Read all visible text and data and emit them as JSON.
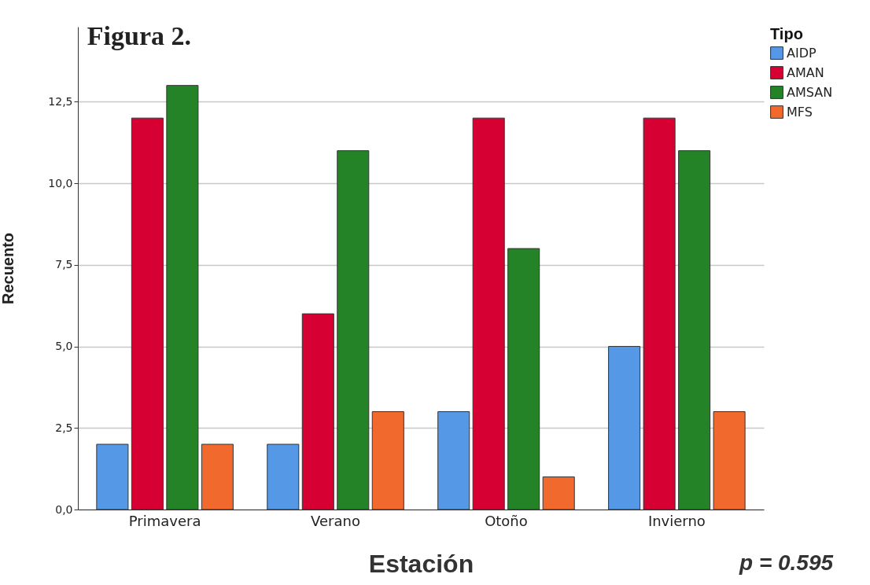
{
  "chart_data": {
    "type": "bar",
    "title": "Figura 2.",
    "xlabel": "Estación",
    "ylabel": "Recuento",
    "legend_title": "Tipo",
    "categories": [
      "Primavera",
      "Verano",
      "Otoño",
      "Invierno"
    ],
    "series": [
      {
        "name": "AIDP",
        "color": "#5598e5",
        "values": [
          2,
          2,
          3,
          5
        ]
      },
      {
        "name": "AMAN",
        "color": "#d60032",
        "values": [
          12,
          6,
          12,
          12
        ]
      },
      {
        "name": "AMSAN",
        "color": "#258327",
        "values": [
          13,
          11,
          8,
          11
        ]
      },
      {
        "name": "MFS",
        "color": "#f2692d",
        "values": [
          2,
          3,
          1,
          3
        ]
      }
    ],
    "ylim": [
      0,
      14.8
    ],
    "yticks": [
      {
        "value": 0,
        "label": "0,0"
      },
      {
        "value": 2.5,
        "label": "2,5"
      },
      {
        "value": 5,
        "label": "5,0"
      },
      {
        "value": 7.5,
        "label": "7,5"
      },
      {
        "value": 10,
        "label": "10,0"
      },
      {
        "value": 12.5,
        "label": "12,5"
      }
    ],
    "grid": "y",
    "legend": "top right",
    "annotations": [
      "p = 0.595"
    ]
  }
}
